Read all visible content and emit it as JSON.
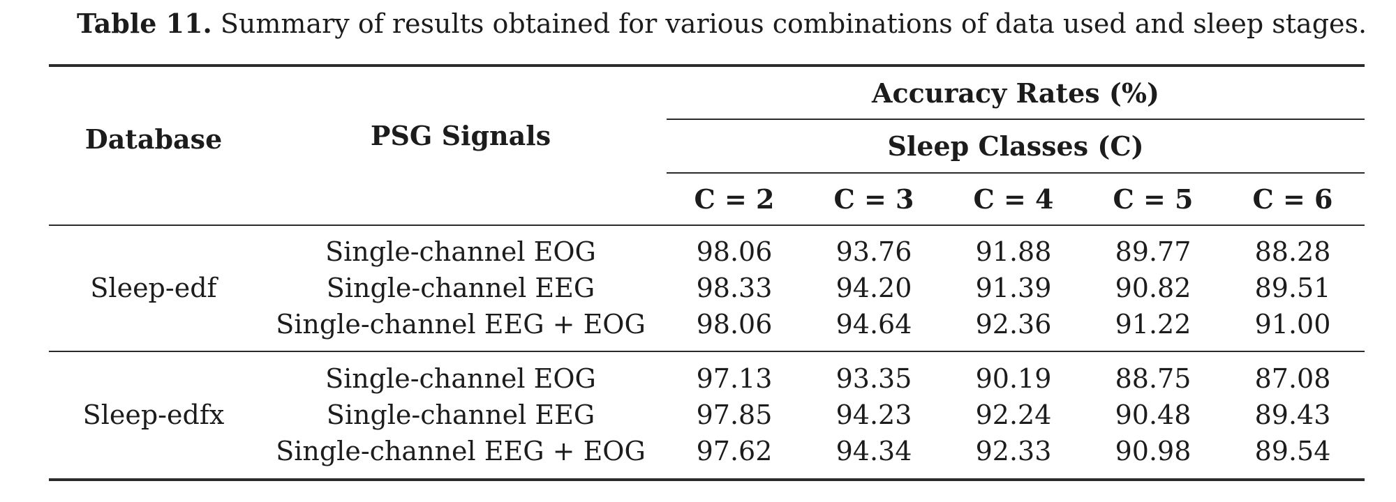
{
  "caption": {
    "label": "Table 11.",
    "text": "Summary of results obtained for various combinations of data used and sleep stages."
  },
  "header": {
    "database": "Database",
    "psg_signals": "PSG Signals",
    "accuracy_rates": "Accuracy Rates (%)",
    "sleep_classes": "Sleep Classes (C)",
    "classes": [
      "C = 2",
      "C = 3",
      "C = 4",
      "C = 5",
      "C = 6"
    ]
  },
  "groups": [
    {
      "database": "Sleep-edf",
      "rows": [
        {
          "signal": "Single-channel EOG",
          "values": [
            "98.06",
            "93.76",
            "91.88",
            "89.77",
            "88.28"
          ]
        },
        {
          "signal": "Single-channel EEG",
          "values": [
            "98.33",
            "94.20",
            "91.39",
            "90.82",
            "89.51"
          ]
        },
        {
          "signal": "Single-channel EEG + EOG",
          "values": [
            "98.06",
            "94.64",
            "92.36",
            "91.22",
            "91.00"
          ]
        }
      ]
    },
    {
      "database": "Sleep-edfx",
      "rows": [
        {
          "signal": "Single-channel EOG",
          "values": [
            "97.13",
            "93.35",
            "90.19",
            "88.75",
            "87.08"
          ]
        },
        {
          "signal": "Single-channel EEG",
          "values": [
            "97.85",
            "94.23",
            "92.24",
            "90.48",
            "89.43"
          ]
        },
        {
          "signal": "Single-channel EEG + EOG",
          "values": [
            "97.62",
            "94.34",
            "92.33",
            "90.98",
            "89.54"
          ]
        }
      ]
    }
  ]
}
